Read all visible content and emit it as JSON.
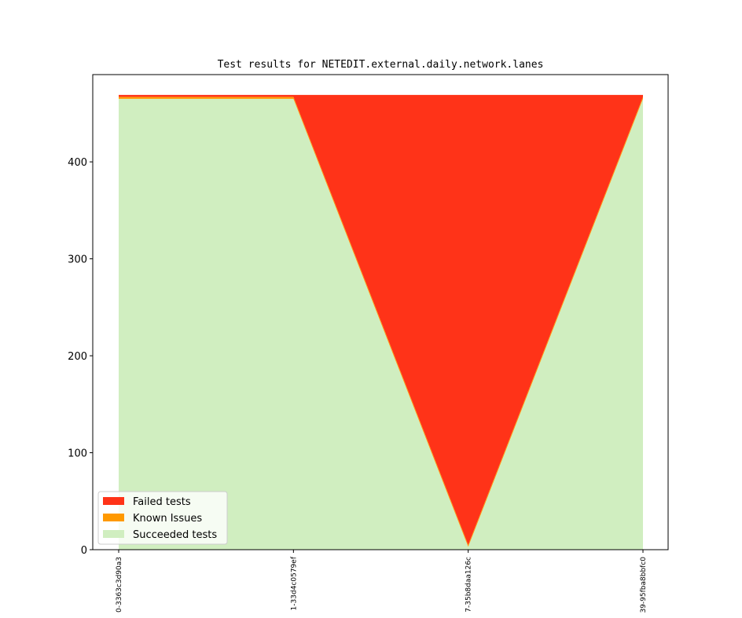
{
  "chart_data": {
    "type": "area",
    "title": "Test results for NETEDIT.external.daily.network.lanes",
    "xlabel": "",
    "ylabel": "",
    "categories": [
      "0-3363c3d90a3",
      "1-33d4c0579ef",
      "7-35b8daa126c",
      "39-95fba8bbfc0"
    ],
    "stacked": true,
    "series": [
      {
        "name": "Succeeded tests",
        "values": [
          465,
          465,
          3,
          465
        ],
        "color": "#d0eec0"
      },
      {
        "name": "Known Issues",
        "values": [
          2,
          2,
          2,
          2
        ],
        "color": "#ff9900"
      },
      {
        "name": "Failed tests",
        "values": [
          2,
          2,
          464,
          2
        ],
        "color": "#ff3318"
      }
    ],
    "ylim": [
      0,
      490
    ],
    "yticks": [
      0,
      100,
      200,
      300,
      400
    ],
    "grid": false,
    "legend_position": "lower-left"
  }
}
